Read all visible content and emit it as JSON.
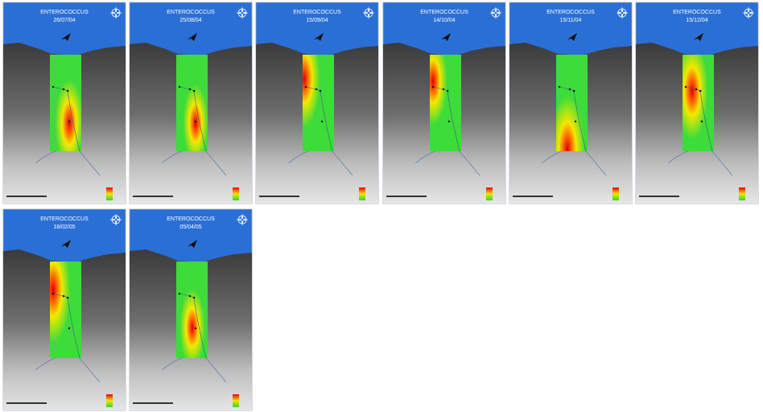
{
  "panels": [
    {
      "title": "ENTEROCOCCUS",
      "date": "26/07/04"
    },
    {
      "title": "ENTEROCOCCUS",
      "date": "25/08/04"
    },
    {
      "title": "ENTEROCOCCUS",
      "date": "15/09/04"
    },
    {
      "title": "ENTEROCOCCUS",
      "date": "14/10/04"
    },
    {
      "title": "ENTEROCOCCUS",
      "date": "15/11/04"
    },
    {
      "title": "ENTEROCOCCUS",
      "date": "15/12/04"
    },
    {
      "title": "ENTEROCOCCUS",
      "date": "18/02/05"
    },
    {
      "title": "ENTEROCOCCUS",
      "date": "05/04/05"
    }
  ]
}
